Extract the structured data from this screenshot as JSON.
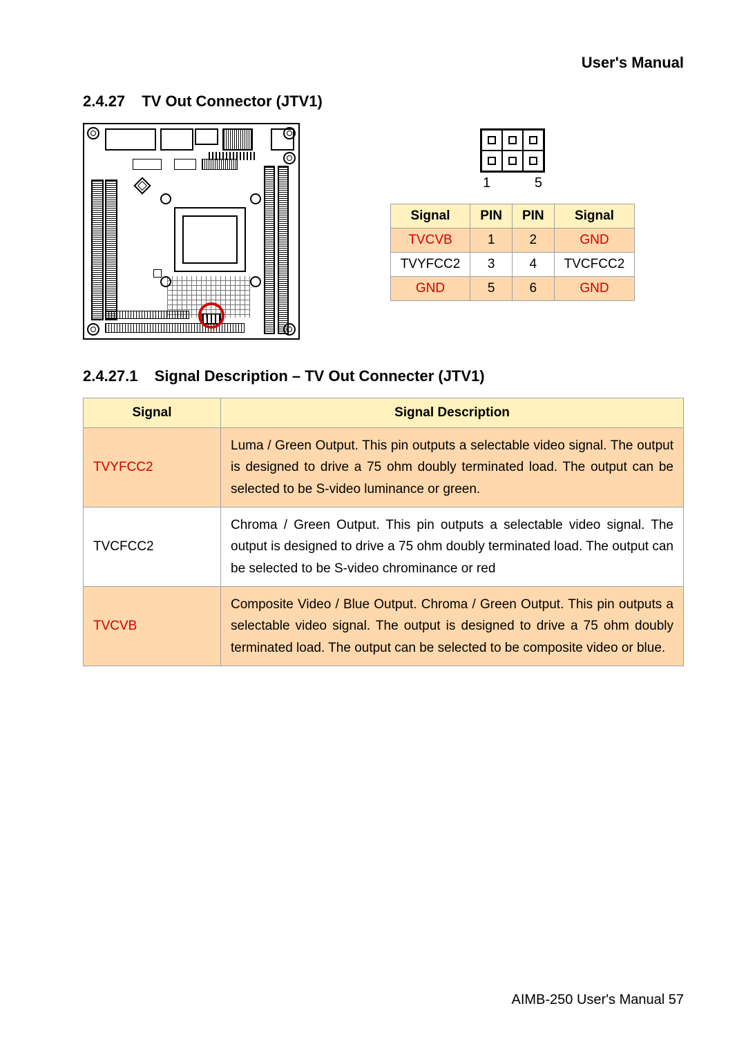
{
  "header": {
    "right_title": "User's  Manual"
  },
  "section": {
    "num": "2.4.27",
    "title": "TV Out Connector (JTV1)"
  },
  "colors": {
    "header_yellow": "#fff2bf",
    "row_orange": "#ffd8ad",
    "row_white": "#ffffff",
    "red_text": "#d00000",
    "border_gray": "#a0a0a0",
    "black": "#000000"
  },
  "pin_diagram": {
    "rows": 2,
    "cols": 3,
    "bottom_left_label": "1",
    "bottom_right_label": "5"
  },
  "pin_table": {
    "headers": [
      "Signal",
      "PIN",
      "PIN",
      "Signal"
    ],
    "rows": [
      {
        "bg": "orange",
        "left_signal": "TVCVB",
        "left_red": true,
        "pin_a": "1",
        "pin_b": "2",
        "right_signal": "GND",
        "right_red": true
      },
      {
        "bg": "white",
        "left_signal": "TVYFCC2",
        "left_red": false,
        "pin_a": "3",
        "pin_b": "4",
        "right_signal": "TVCFCC2",
        "right_red": false
      },
      {
        "bg": "orange",
        "left_signal": "GND",
        "left_red": true,
        "pin_a": "5",
        "pin_b": "6",
        "right_signal": "GND",
        "right_red": true
      }
    ]
  },
  "subsection": {
    "num": "2.4.27.1",
    "title": "Signal Description – TV Out Connecter (JTV1)"
  },
  "desc_table": {
    "headers": [
      "Signal",
      "Signal Description"
    ],
    "rows": [
      {
        "bg": "orange",
        "signal": "TVYFCC2",
        "signal_red": true,
        "desc": "Luma / Green Output. This pin outputs a selectable video signal. The output is designed to drive a 75 ohm doubly terminated load. The output can be selected to be S-video luminance or green."
      },
      {
        "bg": "white",
        "signal": "TVCFCC2",
        "signal_red": false,
        "desc": "Chroma / Green Output. This pin outputs a selectable video signal. The output is designed to drive a 75 ohm doubly terminated load. The output can be selected to be S-video chrominance or red"
      },
      {
        "bg": "orange",
        "signal": "TVCVB",
        "signal_red": true,
        "desc": "Composite Video / Blue Output. Chroma / Green Output. This pin outputs a selectable video signal. The output is designed to drive a 75 ohm doubly terminated load. The output can be selected to be composite video or blue."
      }
    ]
  },
  "footer": {
    "text_prefix": "AIMB-250  User's  Manual ",
    "page_number": "57"
  }
}
